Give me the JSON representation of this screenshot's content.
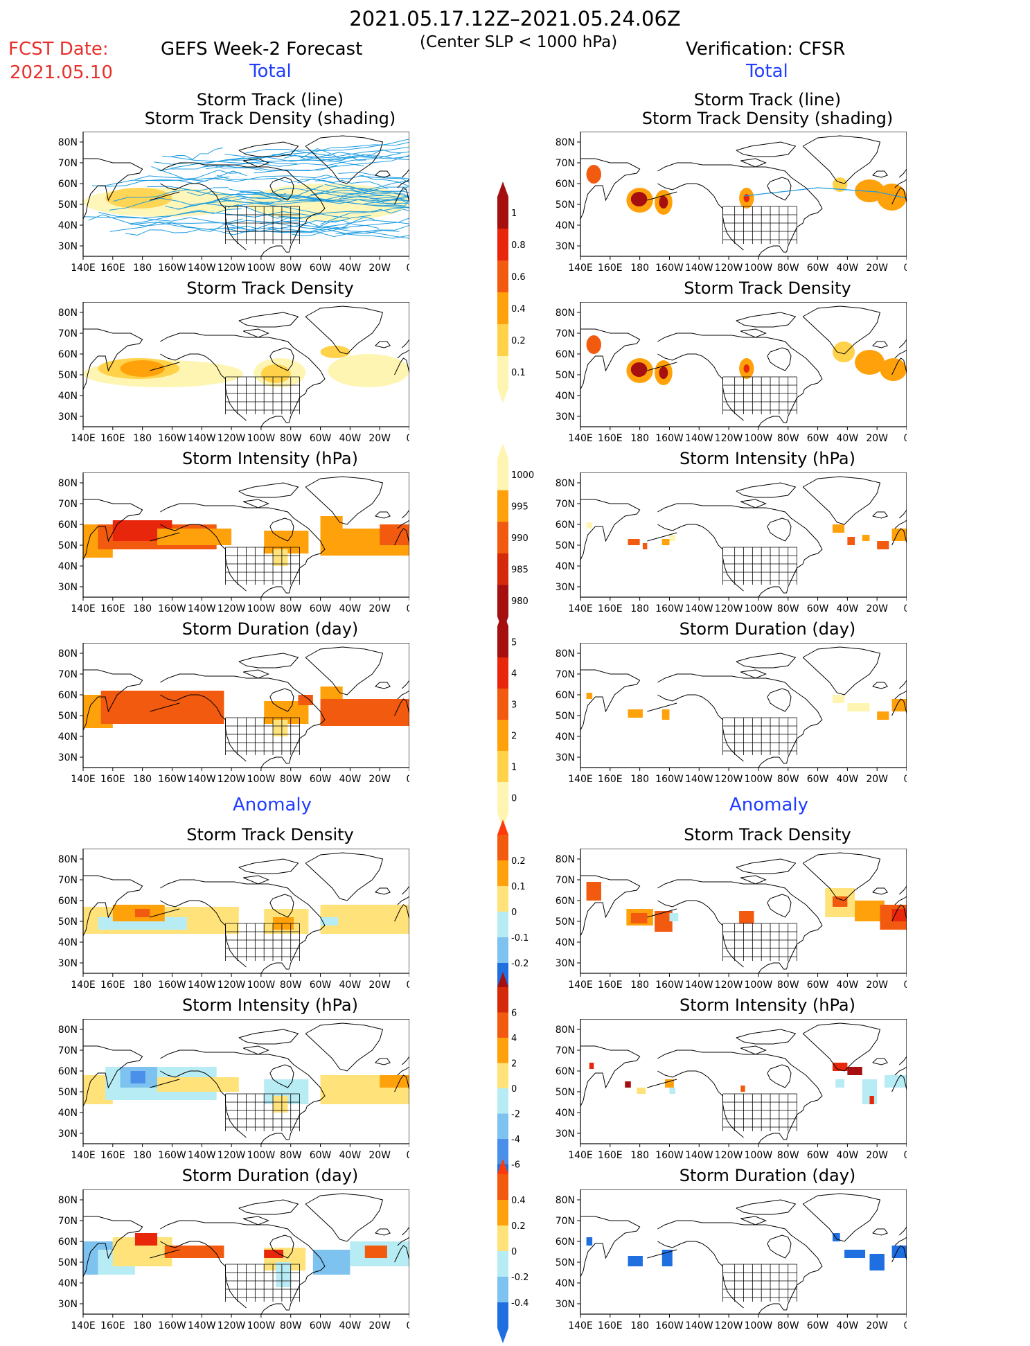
{
  "header": {
    "period": "2021.05.17.12Z–2021.05.24.06Z",
    "criterion": "(Center SLP < 1000 hPa)",
    "fcst_label": "FCST Date:",
    "fcst_date": "2021.05.10",
    "left_title": "GEFS Week-2 Forecast",
    "right_title": "Verification: CFSR",
    "section_total": "Total",
    "section_anomaly": "Anomaly"
  },
  "panel_titles": {
    "track_line": "Storm Track (line)",
    "track_shading": "Storm Track Density (shading)",
    "density": "Storm Track Density",
    "intensity": "Storm Intensity (hPa)",
    "duration": "Storm Duration (day)"
  },
  "axes": {
    "lon_ticks": [
      "140E",
      "160E",
      "180",
      "160W",
      "140W",
      "120W",
      "100W",
      "80W",
      "60W",
      "40W",
      "20W",
      "0"
    ],
    "lat_ticks": [
      "80N",
      "70N",
      "60N",
      "50N",
      "40N",
      "30N"
    ]
  },
  "colors": {
    "track_line": "#1a9be0",
    "map_outline": "#000000"
  },
  "chart_data": [
    {
      "type": "heatmap",
      "name": "density-total",
      "levels": [
        "1",
        "0.8",
        "0.6",
        "0.4",
        "0.2",
        "0.1"
      ],
      "colors": [
        "#a50f0f",
        "#e8260c",
        "#f25a0f",
        "#ffa10a",
        "#ffd24a",
        "#fff5b3"
      ],
      "arrow_colors": [
        "#a50f0f",
        "#fff5b3"
      ]
    },
    {
      "type": "heatmap",
      "name": "intensity-total",
      "levels": [
        "1000",
        "995",
        "990",
        "985",
        "980"
      ],
      "colors": [
        "#fff5b3",
        "#ffa10a",
        "#f25a0f",
        "#d42a0a",
        "#a50f0f"
      ],
      "arrow_colors": [
        "#fff5b3",
        "#a50f0f"
      ]
    },
    {
      "type": "heatmap",
      "name": "duration-total",
      "levels": [
        "5",
        "4",
        "3",
        "2",
        "1",
        "0"
      ],
      "colors": [
        "#a50f0f",
        "#e8260c",
        "#f25a0f",
        "#ffa10a",
        "#ffd24a",
        "#fff5b3"
      ],
      "arrow_colors": [
        "#a50f0f",
        "#fff5b3"
      ]
    },
    {
      "type": "heatmap",
      "name": "density-anomaly",
      "levels": [
        "0.2",
        "0.1",
        "0",
        "-0.1",
        "-0.2"
      ],
      "colors": [
        "#f25a0f",
        "#ffa10a",
        "#ffe27a",
        "#b8ecf5",
        "#7ec3f0",
        "#1f6fe0"
      ],
      "arrow_colors": [
        "#ff3a0a",
        "#1f6fe0"
      ]
    },
    {
      "type": "heatmap",
      "name": "intensity-anomaly",
      "levels": [
        "6",
        "4",
        "2",
        "0",
        "-2",
        "-4",
        "-6"
      ],
      "colors": [
        "#d42a0a",
        "#f25a0f",
        "#ffa10a",
        "#ffe27a",
        "#b8ecf5",
        "#7ec3f0",
        "#4a90ea",
        "#1f6fe0"
      ],
      "arrow_colors": [
        "#a50f0f",
        "#1f6fe0"
      ]
    },
    {
      "type": "heatmap",
      "name": "duration-anomaly",
      "levels": [
        "0.4",
        "0.2",
        "0",
        "-0.2",
        "-0.4"
      ],
      "colors": [
        "#f25a0f",
        "#ffa10a",
        "#ffe27a",
        "#b8ecf5",
        "#7ec3f0",
        "#1f6fe0"
      ],
      "arrow_colors": [
        "#ff3a0a",
        "#1f6fe0"
      ]
    }
  ]
}
